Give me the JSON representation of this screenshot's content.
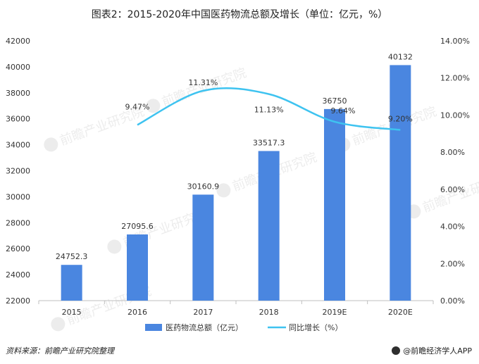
{
  "title": "图表2：2015-2020年中国医药物流总额及增长（单位：亿元，%）",
  "source": "资料来源：前瞻产业研究院整理",
  "brand": "@前瞻经济学人APP",
  "watermark": "前瞻产业研究院",
  "colors": {
    "bar": "#4a86e0",
    "line": "#3ec3f0",
    "axis": "#bfbfbf",
    "text": "#333333"
  },
  "chart_data": {
    "type": "bar",
    "categories": [
      "2015",
      "2016",
      "2017",
      "2018",
      "2019E",
      "2020E"
    ],
    "series": [
      {
        "name": "医药物流总额（亿元）",
        "type": "bar",
        "axis": "left",
        "values": [
          24752.3,
          27095.6,
          30160.9,
          33517.3,
          36750,
          40132
        ],
        "labels": [
          "24752.3",
          "27095.6",
          "30160.9",
          "33517.3",
          "36750",
          "40132"
        ]
      },
      {
        "name": "同比增长（%）",
        "type": "line",
        "axis": "right",
        "x": [
          "2016",
          "2017",
          "2018",
          "2019E",
          "2020E"
        ],
        "values": [
          9.47,
          11.31,
          11.13,
          9.64,
          9.2
        ],
        "labels": [
          "9.47%",
          "11.31%",
          "11.13%",
          "9.64%",
          "9.20%"
        ]
      }
    ],
    "y_left": {
      "min": 22000,
      "max": 42000,
      "step": 2000,
      "ticks": [
        "22000",
        "24000",
        "26000",
        "28000",
        "30000",
        "32000",
        "34000",
        "36000",
        "38000",
        "40000",
        "42000"
      ]
    },
    "y_right": {
      "min": 0,
      "max": 14,
      "step": 2,
      "ticks": [
        "0.00%",
        "2.00%",
        "4.00%",
        "6.00%",
        "8.00%",
        "10.00%",
        "12.00%",
        "14.00%"
      ]
    },
    "grid": false,
    "legend_position": "bottom"
  }
}
